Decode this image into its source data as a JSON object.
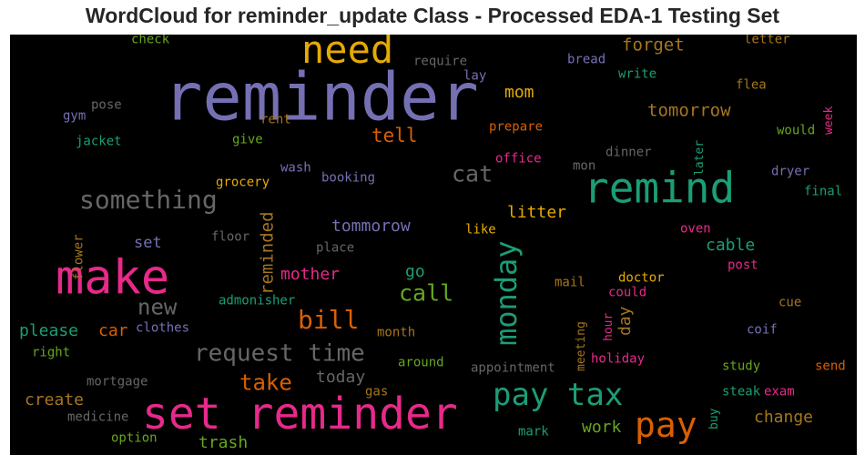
{
  "chart_data": {
    "type": "wordcloud",
    "title": "WordCloud for reminder_update Class - Processed EDA-1 Testing Set",
    "background": "#000000",
    "palette": [
      "#7570b3",
      "#1b9e77",
      "#d95f02",
      "#e7298a",
      "#66a61e",
      "#e6ab02",
      "#a6761d",
      "#666666"
    ],
    "words": [
      {
        "text": "reminder",
        "weight": 100,
        "color": "#7570b3"
      },
      {
        "text": "set reminder",
        "weight": 62,
        "color": "#e7298a"
      },
      {
        "text": "make",
        "weight": 62,
        "color": "#e7298a"
      },
      {
        "text": "remind",
        "weight": 58,
        "color": "#1b9e77"
      },
      {
        "text": "need",
        "weight": 48,
        "color": "#e6ab02"
      },
      {
        "text": "pay",
        "weight": 44,
        "color": "#d95f02"
      },
      {
        "text": "pay tax",
        "weight": 40,
        "color": "#1b9e77"
      },
      {
        "text": "monday",
        "weight": 38,
        "color": "#1b9e77"
      },
      {
        "text": "something",
        "weight": 36,
        "color": "#666666"
      },
      {
        "text": "bill",
        "weight": 33,
        "color": "#d95f02"
      },
      {
        "text": "request time",
        "weight": 30,
        "color": "#666666"
      },
      {
        "text": "call",
        "weight": 28,
        "color": "#66a61e"
      },
      {
        "text": "cat",
        "weight": 28,
        "color": "#666666"
      },
      {
        "text": "take",
        "weight": 26,
        "color": "#d95f02"
      },
      {
        "text": "new",
        "weight": 26,
        "color": "#666666"
      },
      {
        "text": "tell",
        "weight": 23,
        "color": "#d95f02"
      },
      {
        "text": "reminded",
        "weight": 22,
        "color": "#a6761d"
      },
      {
        "text": "tomorrow",
        "weight": 20,
        "color": "#a6761d"
      },
      {
        "text": "forget",
        "weight": 20,
        "color": "#a6761d"
      },
      {
        "text": "tommorow",
        "weight": 20,
        "color": "#7570b3"
      },
      {
        "text": "litter",
        "weight": 20,
        "color": "#e6ab02"
      },
      {
        "text": "mom",
        "weight": 20,
        "color": "#e6ab02"
      },
      {
        "text": "mother",
        "weight": 20,
        "color": "#e7298a"
      },
      {
        "text": "please",
        "weight": 20,
        "color": "#1b9e77"
      },
      {
        "text": "create",
        "weight": 19,
        "color": "#a6761d"
      },
      {
        "text": "trash",
        "weight": 19,
        "color": "#66a61e"
      },
      {
        "text": "today",
        "weight": 19,
        "color": "#666666"
      },
      {
        "text": "work",
        "weight": 20,
        "color": "#66a61e"
      },
      {
        "text": "change",
        "weight": 19,
        "color": "#a6761d"
      },
      {
        "text": "cable",
        "weight": 19,
        "color": "#1b9e77"
      },
      {
        "text": "go",
        "weight": 19,
        "color": "#1b9e77"
      },
      {
        "text": "day",
        "weight": 19,
        "color": "#a6761d"
      },
      {
        "text": "car",
        "weight": 19,
        "color": "#d95f02"
      },
      {
        "text": "set",
        "weight": 18,
        "color": "#7570b3"
      },
      {
        "text": "check",
        "weight": 15,
        "color": "#66a61e"
      },
      {
        "text": "require",
        "weight": 15,
        "color": "#666666"
      },
      {
        "text": "bread",
        "weight": 15,
        "color": "#7570b3"
      },
      {
        "text": "letter",
        "weight": 15,
        "color": "#a6761d"
      },
      {
        "text": "lay",
        "weight": 15,
        "color": "#7570b3"
      },
      {
        "text": "write",
        "weight": 15,
        "color": "#1b9e77"
      },
      {
        "text": "flea",
        "weight": 15,
        "color": "#a6761d"
      },
      {
        "text": "pose",
        "weight": 15,
        "color": "#666666"
      },
      {
        "text": "gym",
        "weight": 15,
        "color": "#7570b3"
      },
      {
        "text": "rent",
        "weight": 15,
        "color": "#a6761d"
      },
      {
        "text": "prepare",
        "weight": 15,
        "color": "#d95f02"
      },
      {
        "text": "week",
        "weight": 13,
        "color": "#e7298a"
      },
      {
        "text": "would",
        "weight": 15,
        "color": "#66a61e"
      },
      {
        "text": "jacket",
        "weight": 15,
        "color": "#1b9e77"
      },
      {
        "text": "give",
        "weight": 15,
        "color": "#66a61e"
      },
      {
        "text": "dinner",
        "weight": 15,
        "color": "#666666"
      },
      {
        "text": "office",
        "weight": 15,
        "color": "#e7298a"
      },
      {
        "text": "mon",
        "weight": 15,
        "color": "#666666"
      },
      {
        "text": "later",
        "weight": 13,
        "color": "#1b9e77"
      },
      {
        "text": "dryer",
        "weight": 15,
        "color": "#7570b3"
      },
      {
        "text": "wash",
        "weight": 15,
        "color": "#7570b3"
      },
      {
        "text": "booking",
        "weight": 15,
        "color": "#7570b3"
      },
      {
        "text": "grocery",
        "weight": 15,
        "color": "#e6ab02"
      },
      {
        "text": "final",
        "weight": 15,
        "color": "#1b9e77"
      },
      {
        "text": "flower",
        "weight": 15,
        "color": "#a6761d"
      },
      {
        "text": "like",
        "weight": 15,
        "color": "#e6ab02"
      },
      {
        "text": "oven",
        "weight": 15,
        "color": "#e7298a"
      },
      {
        "text": "floor",
        "weight": 15,
        "color": "#666666"
      },
      {
        "text": "place",
        "weight": 15,
        "color": "#666666"
      },
      {
        "text": "post",
        "weight": 15,
        "color": "#e7298a"
      },
      {
        "text": "admonisher",
        "weight": 15,
        "color": "#1b9e77"
      },
      {
        "text": "mail",
        "weight": 15,
        "color": "#a6761d"
      },
      {
        "text": "doctor",
        "weight": 15,
        "color": "#e6ab02"
      },
      {
        "text": "could",
        "weight": 15,
        "color": "#e7298a"
      },
      {
        "text": "cue",
        "weight": 15,
        "color": "#a6761d"
      },
      {
        "text": "meeting",
        "weight": 13,
        "color": "#a6761d"
      },
      {
        "text": "hour",
        "weight": 13,
        "color": "#e7298a"
      },
      {
        "text": "clothes",
        "weight": 15,
        "color": "#7570b3"
      },
      {
        "text": "month",
        "weight": 15,
        "color": "#a6761d"
      },
      {
        "text": "coif",
        "weight": 15,
        "color": "#7570b3"
      },
      {
        "text": "right",
        "weight": 15,
        "color": "#66a61e"
      },
      {
        "text": "holiday",
        "weight": 15,
        "color": "#e7298a"
      },
      {
        "text": "around",
        "weight": 15,
        "color": "#66a61e"
      },
      {
        "text": "appointment",
        "weight": 15,
        "color": "#666666"
      },
      {
        "text": "study",
        "weight": 15,
        "color": "#66a61e"
      },
      {
        "text": "send",
        "weight": 15,
        "color": "#d95f02"
      },
      {
        "text": "mortgage",
        "weight": 15,
        "color": "#666666"
      },
      {
        "text": "gas",
        "weight": 15,
        "color": "#a6761d"
      },
      {
        "text": "steak",
        "weight": 15,
        "color": "#1b9e77"
      },
      {
        "text": "exam",
        "weight": 15,
        "color": "#e7298a"
      },
      {
        "text": "medicine",
        "weight": 15,
        "color": "#666666"
      },
      {
        "text": "buy",
        "weight": 13,
        "color": "#1b9e77"
      },
      {
        "text": "mark",
        "weight": 15,
        "color": "#1b9e77"
      },
      {
        "text": "option",
        "weight": 15,
        "color": "#66a61e"
      }
    ]
  }
}
